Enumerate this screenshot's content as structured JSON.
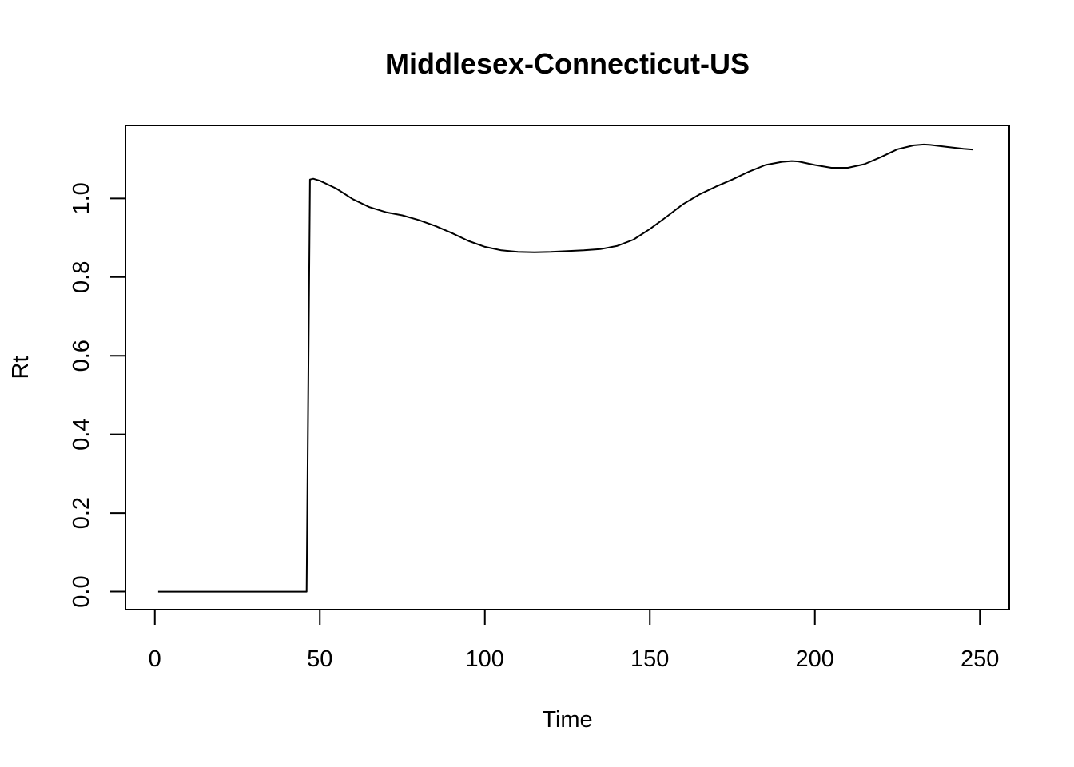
{
  "chart_data": {
    "type": "line",
    "title": "Middlesex-Connecticut-US",
    "xlabel": "Time",
    "ylabel": "Rt",
    "xlim": [
      -8.9,
      258.9
    ],
    "ylim": [
      -0.0456,
      1.1856
    ],
    "grid": false,
    "legend": "none",
    "x_ticks": [
      0,
      50,
      100,
      150,
      200,
      250
    ],
    "x_tick_labels": [
      "0",
      "50",
      "100",
      "150",
      "200",
      "250"
    ],
    "y_ticks": [
      0.0,
      0.2,
      0.4,
      0.6,
      0.8,
      1.0
    ],
    "y_tick_labels": [
      "0.0",
      "0.2",
      "0.4",
      "0.6",
      "0.8",
      "1.0"
    ],
    "line_color": "#000000",
    "series": [
      {
        "x": [
          1,
          10,
          20,
          30,
          40,
          46,
          47,
          48,
          50,
          55,
          60,
          65,
          70,
          75,
          80,
          85,
          90,
          95,
          100,
          105,
          110,
          115,
          120,
          125,
          130,
          135,
          140,
          145,
          150,
          155,
          160,
          165,
          170,
          175,
          180,
          185,
          190,
          193,
          195,
          200,
          205,
          210,
          215,
          220,
          225,
          230,
          233,
          235,
          240,
          245,
          248
        ],
        "y": [
          0.0,
          0.0,
          0.0,
          0.0,
          0.0,
          0.0,
          1.048,
          1.05,
          1.045,
          1.025,
          0.998,
          0.978,
          0.965,
          0.957,
          0.945,
          0.93,
          0.912,
          0.892,
          0.877,
          0.868,
          0.864,
          0.863,
          0.864,
          0.866,
          0.868,
          0.871,
          0.879,
          0.895,
          0.922,
          0.953,
          0.985,
          1.01,
          1.03,
          1.048,
          1.068,
          1.085,
          1.093,
          1.095,
          1.094,
          1.085,
          1.078,
          1.078,
          1.087,
          1.105,
          1.125,
          1.135,
          1.137,
          1.136,
          1.131,
          1.126,
          1.124
        ]
      }
    ]
  }
}
